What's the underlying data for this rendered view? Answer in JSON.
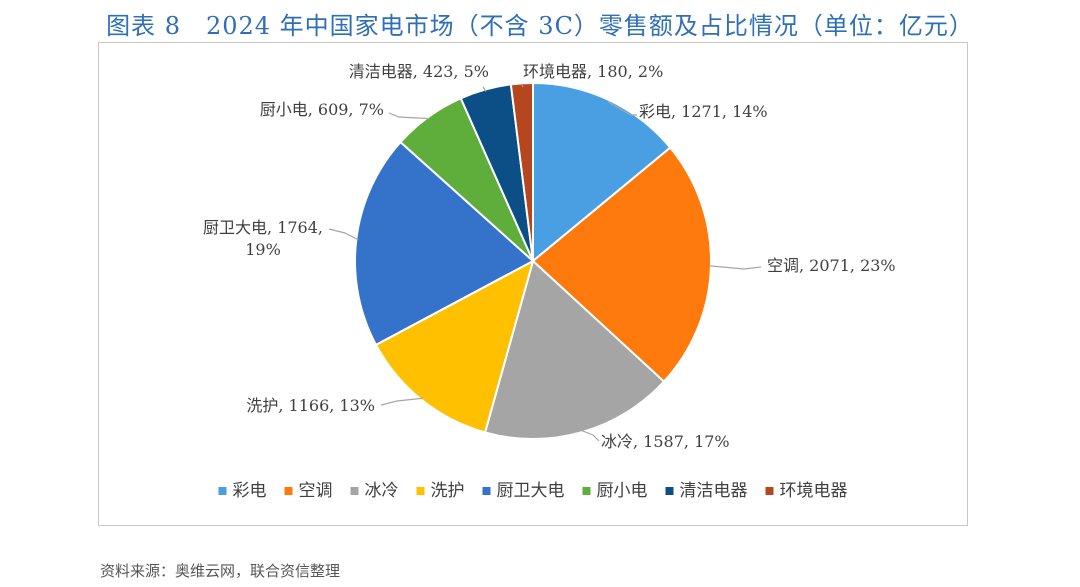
{
  "figure_title": "图表 8　2024 年中国家电市场（不含 3C）零售额及占比情况（单位：亿元）",
  "source_note": "资料来源：奥维云网，联合资信整理",
  "chart_data": {
    "type": "pie",
    "title": "图表 8　2024 年中国家电市场（不含 3C）零售额及占比情况（单位：亿元）",
    "unit": "亿元",
    "legend_position": "bottom",
    "slices": [
      {
        "name": "彩电",
        "value": 1271,
        "percent": "14%",
        "color": "#4a9fe3",
        "label": "彩电, 1271, 14%"
      },
      {
        "name": "空调",
        "value": 2071,
        "percent": "23%",
        "color": "#ff7a0d",
        "label": "空调, 2071, 23%"
      },
      {
        "name": "冰冷",
        "value": 1587,
        "percent": "17%",
        "color": "#a5a5a5",
        "label": "冰冷, 1587, 17%"
      },
      {
        "name": "洗护",
        "value": 1166,
        "percent": "13%",
        "color": "#ffc000",
        "label": "洗护, 1166, 13%"
      },
      {
        "name": "厨卫大电",
        "value": 1764,
        "percent": "19%",
        "color": "#3572c9",
        "label": "厨卫大电, 1764,",
        "label_line2": "19%"
      },
      {
        "name": "厨小电",
        "value": 609,
        "percent": "7%",
        "color": "#5fad3a",
        "label": "厨小电, 609, 7%"
      },
      {
        "name": "清洁电器",
        "value": 423,
        "percent": "5%",
        "color": "#0b4f86",
        "label": "清洁电器, 423, 5%"
      },
      {
        "name": "环境电器",
        "value": 180,
        "percent": "2%",
        "color": "#b5461d",
        "label": "环境电器, 180, 2%"
      }
    ]
  }
}
